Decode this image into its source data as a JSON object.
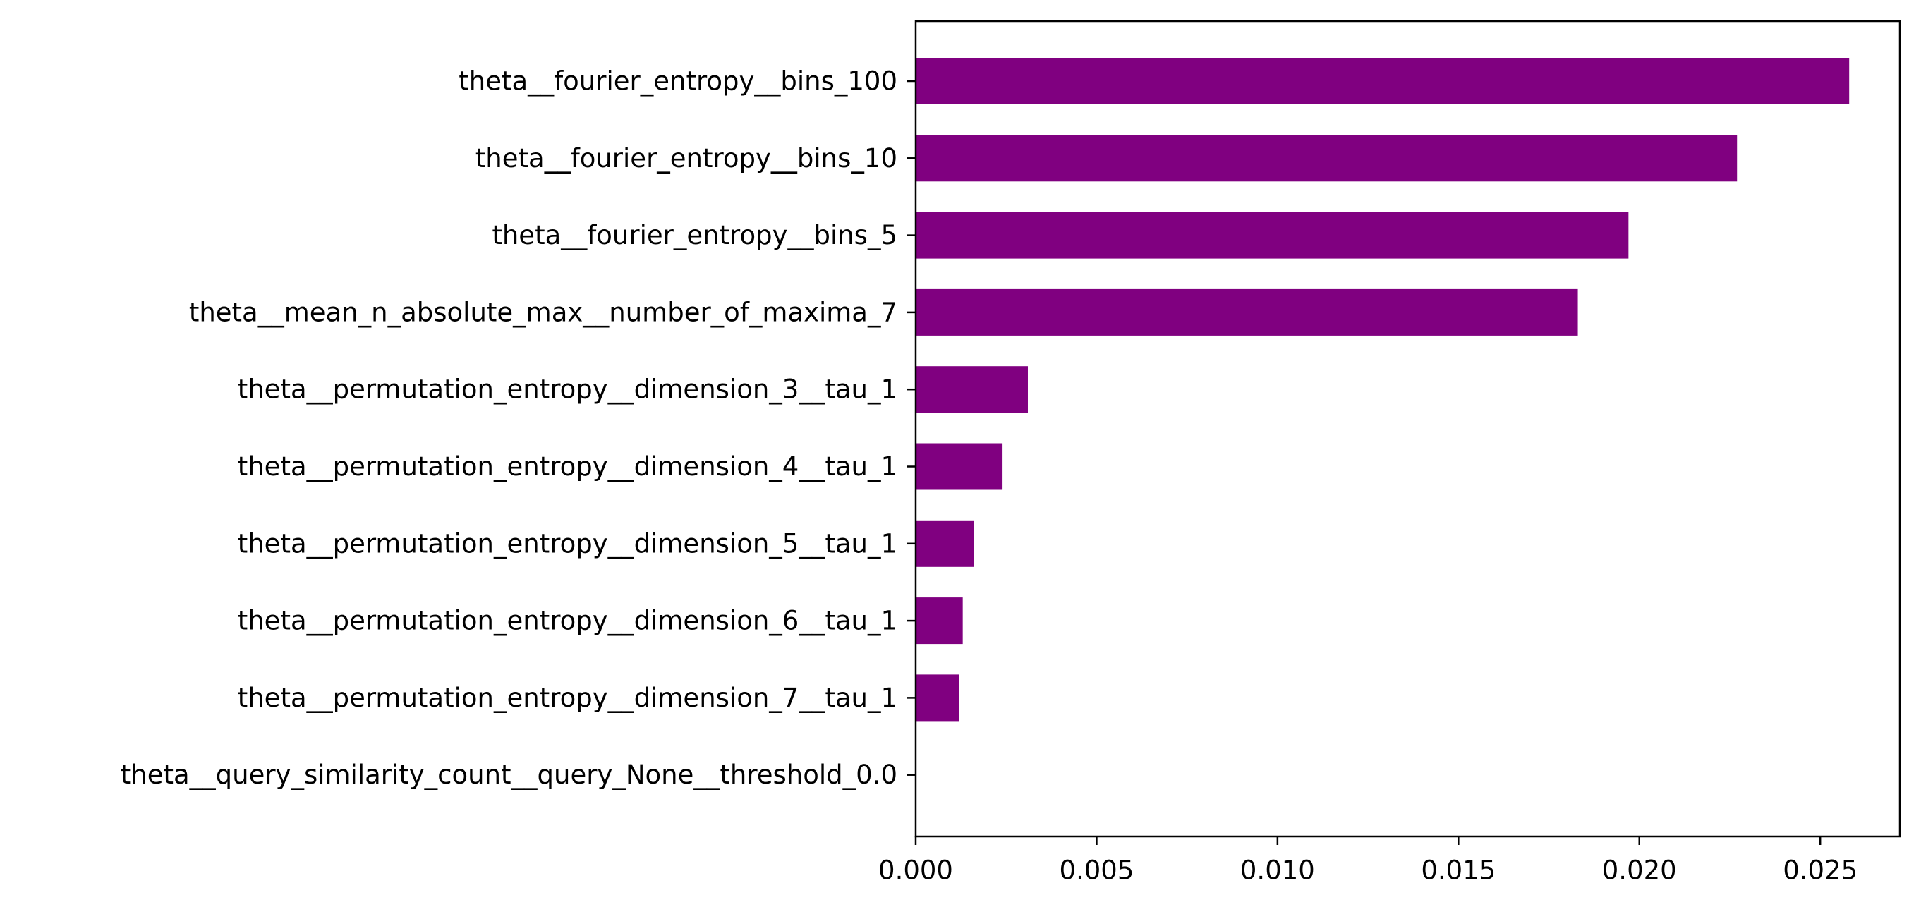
{
  "chart_data": {
    "type": "bar",
    "orientation": "horizontal",
    "title": "",
    "xlabel": "",
    "ylabel": "",
    "categories": [
      "theta__fourier_entropy__bins_100",
      "theta__fourier_entropy__bins_10",
      "theta__fourier_entropy__bins_5",
      "theta__mean_n_absolute_max__number_of_maxima_7",
      "theta__permutation_entropy__dimension_3__tau_1",
      "theta__permutation_entropy__dimension_4__tau_1",
      "theta__permutation_entropy__dimension_5__tau_1",
      "theta__permutation_entropy__dimension_6__tau_1",
      "theta__permutation_entropy__dimension_7__tau_1",
      "theta__query_similarity_count__query_None__threshold_0.0"
    ],
    "values": [
      0.0258,
      0.0227,
      0.0197,
      0.0183,
      0.0031,
      0.0024,
      0.0016,
      0.0013,
      0.0012,
      0.0
    ],
    "xlim": [
      0,
      0.0272
    ],
    "xticks": [
      0.0,
      0.005,
      0.01,
      0.015,
      0.02,
      0.025
    ],
    "xtick_labels": [
      "0.000",
      "0.005",
      "0.010",
      "0.015",
      "0.020",
      "0.025"
    ],
    "bar_color": "#800080",
    "grid": false,
    "legend": false
  }
}
